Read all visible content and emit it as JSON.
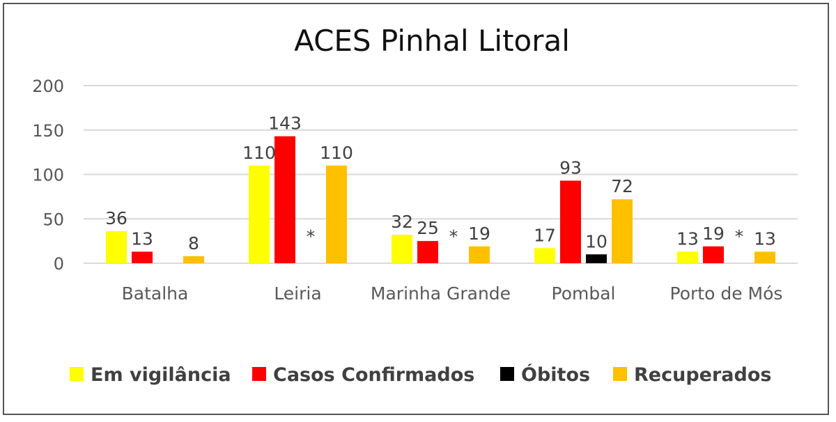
{
  "chart_data": {
    "type": "bar",
    "title": "ACES Pinhal Litoral",
    "categories": [
      "Batalha",
      "Leiria",
      "Marinha Grande",
      "Pombal",
      "Porto de Mós"
    ],
    "y_ticks": [
      "0",
      "50",
      "100",
      "150",
      "200"
    ],
    "ylim": [
      0,
      200
    ],
    "grid": true,
    "legend_position": "bottom",
    "series": [
      {
        "name": "Em vigilância",
        "color": "#ffff00",
        "values": [
          36,
          110,
          32,
          17,
          13
        ],
        "labels": [
          "36",
          "110",
          "32",
          "17",
          "13"
        ]
      },
      {
        "name": "Casos Confirmados",
        "color": "#ff0000",
        "values": [
          13,
          143,
          25,
          93,
          19
        ],
        "labels": [
          "13",
          "143",
          "25",
          "93",
          "19"
        ]
      },
      {
        "name": "Óbitos",
        "color": "#000000",
        "values": [
          0,
          null,
          null,
          10,
          null
        ],
        "labels": [
          "",
          "*",
          "*",
          "10",
          "*"
        ]
      },
      {
        "name": "Recuperados",
        "color": "#ffc000",
        "values": [
          8,
          110,
          19,
          72,
          13
        ],
        "labels": [
          "8",
          "110",
          "19",
          "72",
          "13"
        ]
      }
    ]
  }
}
